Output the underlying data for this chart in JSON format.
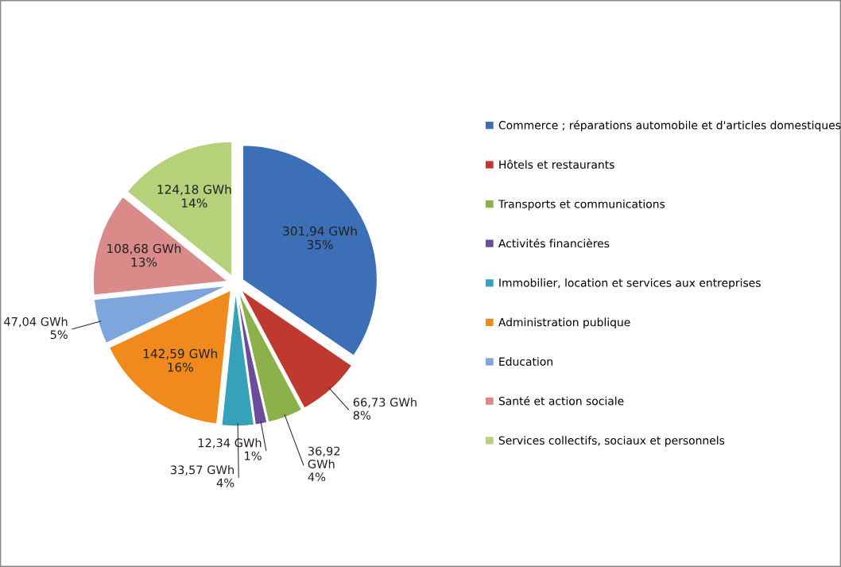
{
  "chart_data": {
    "type": "pie",
    "categories": [
      "Commerce ; réparations automobile et d'articles domestiques",
      "Hôtels et restaurants",
      "Transports et communications",
      "Activités financières",
      "Immobilier, location et services aux entreprises",
      "Administration publique",
      "Education",
      "Santé et action sociale",
      "Services collectifs, sociaux et personnels"
    ],
    "values": [
      301.94,
      66.73,
      36.92,
      12.34,
      33.57,
      142.59,
      47.04,
      108.68,
      124.18
    ],
    "value_labels": [
      "301,94 GWh\n35%",
      "66,73 GWh\n8%",
      "36,92\nGWh\n4%",
      "12,34 GWh\n1%",
      "33,57 GWh\n4%",
      "142,59 GWh\n16%",
      "47,04 GWh\n5%",
      "108,68 GWh\n13%",
      "124,18 GWh\n14%"
    ],
    "colors": [
      "#3d6fb6",
      "#c0392f",
      "#8cb14a",
      "#6a4c9b",
      "#36a2b9",
      "#f08a1d",
      "#7fa6dc",
      "#d98a89",
      "#b5d27b"
    ],
    "legend": "right"
  }
}
